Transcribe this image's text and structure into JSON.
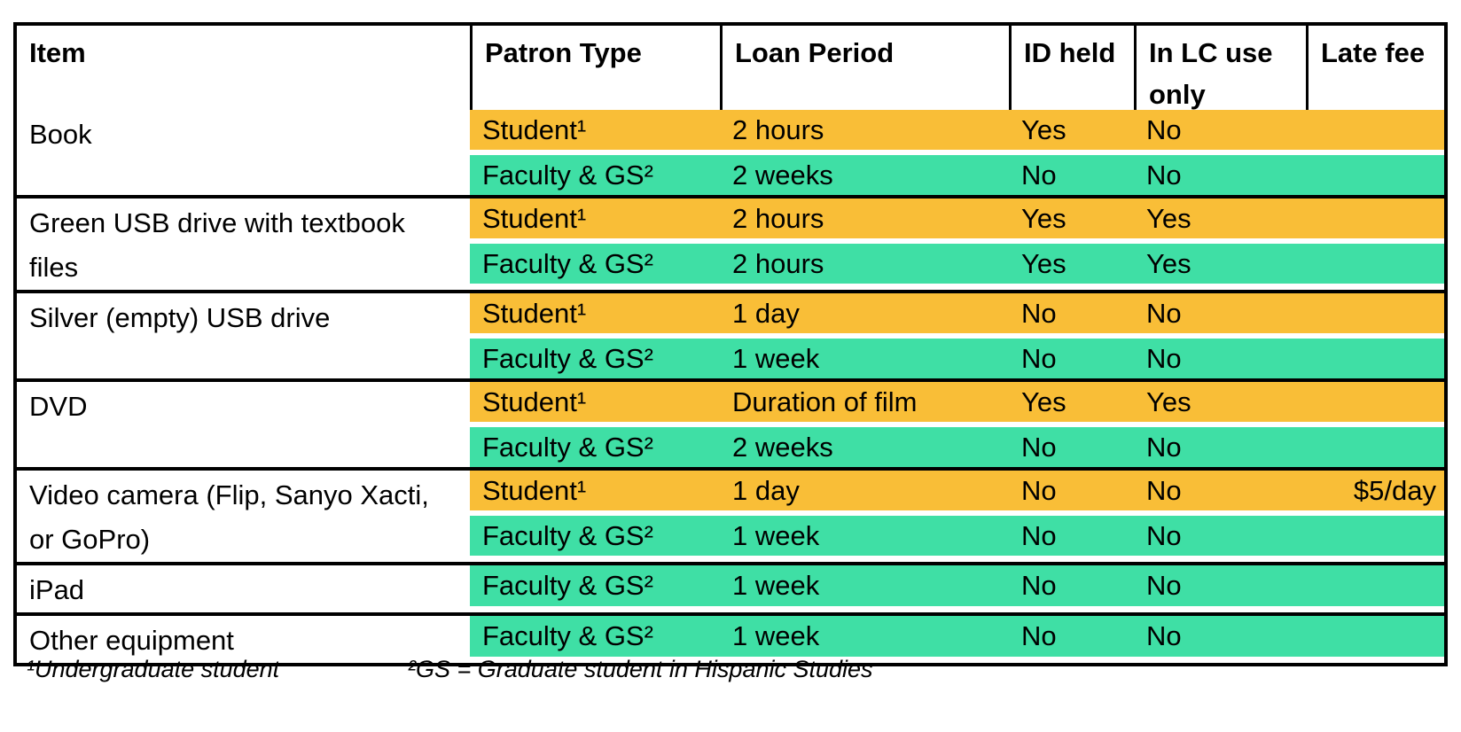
{
  "table": {
    "title": "Loan policy table",
    "headers": {
      "item": "Item",
      "patron_type": "Patron Type",
      "loan_period": "Loan Period",
      "id_held": "ID held",
      "in_lc_use_only": "In LC use only",
      "late_fee": "Late fee"
    },
    "groups": [
      {
        "item": "Book",
        "rows": [
          {
            "patron_type": "Student¹",
            "loan_period": "2 hours",
            "id_held": "Yes",
            "in_lc_use_only": "No",
            "late_fee": ""
          },
          {
            "patron_type": "Faculty & GS²",
            "loan_period": "2 weeks",
            "id_held": "No",
            "in_lc_use_only": "No",
            "late_fee": ""
          }
        ]
      },
      {
        "item": "Green USB drive with textbook files",
        "rows": [
          {
            "patron_type": "Student¹",
            "loan_period": "2 hours",
            "id_held": "Yes",
            "in_lc_use_only": "Yes",
            "late_fee": ""
          },
          {
            "patron_type": "Faculty & GS²",
            "loan_period": "2 hours",
            "id_held": "Yes",
            "in_lc_use_only": "Yes",
            "late_fee": ""
          }
        ]
      },
      {
        "item": "Silver (empty) USB drive",
        "rows": [
          {
            "patron_type": "Student¹",
            "loan_period": "1 day",
            "id_held": "No",
            "in_lc_use_only": "No",
            "late_fee": ""
          },
          {
            "patron_type": "Faculty & GS²",
            "loan_period": "1 week",
            "id_held": "No",
            "in_lc_use_only": "No",
            "late_fee": ""
          }
        ]
      },
      {
        "item": "DVD",
        "rows": [
          {
            "patron_type": "Student¹",
            "loan_period": "Duration of film",
            "id_held": "Yes",
            "in_lc_use_only": "Yes",
            "late_fee": ""
          },
          {
            "patron_type": "Faculty & GS²",
            "loan_period": "2 weeks",
            "id_held": "No",
            "in_lc_use_only": "No",
            "late_fee": ""
          }
        ]
      },
      {
        "item": "Video camera (Flip, Sanyo Xacti, or GoPro)",
        "rows": [
          {
            "patron_type": "Student¹",
            "loan_period": "1 day",
            "id_held": "No",
            "in_lc_use_only": "No",
            "late_fee": "$5/day"
          },
          {
            "patron_type": "Faculty & GS²",
            "loan_period": "1 week",
            "id_held": "No",
            "in_lc_use_only": "No",
            "late_fee": ""
          }
        ]
      },
      {
        "item": "iPad",
        "rows": [
          {
            "patron_type": "Faculty & GS²",
            "loan_period": "1 week",
            "id_held": "No",
            "in_lc_use_only": "No",
            "late_fee": ""
          }
        ]
      },
      {
        "item": "Other equipment",
        "rows": [
          {
            "patron_type": "Faculty & GS²",
            "loan_period": "1 week",
            "id_held": "No",
            "in_lc_use_only": "No",
            "late_fee": ""
          }
        ]
      }
    ]
  },
  "footnotes": {
    "note1": "¹Undergraduate student",
    "note2": "²GS = Graduate student in Hispanic Studies"
  },
  "colors": {
    "student_row_bg": "#F9BE37",
    "faculty_row_bg": "#3FDFA5",
    "border": "#000000",
    "page_bg": "#FFFFFF"
  }
}
